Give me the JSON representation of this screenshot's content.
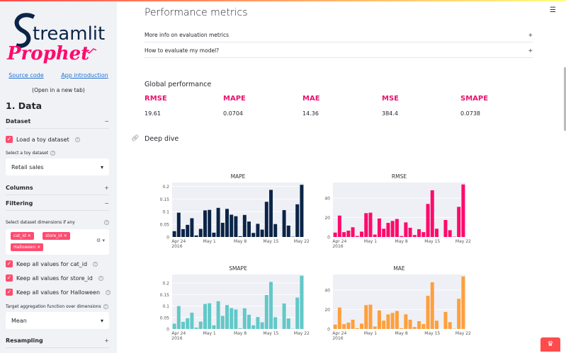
{
  "app": {
    "logo_text": "Streamlit Prophet",
    "menu_icon": "hamburger-icon"
  },
  "sidebar": {
    "links": {
      "source": "Source code",
      "intro": "App introduction",
      "note": "(Open in a new tab)"
    },
    "section_title": "1. Data",
    "dataset": {
      "label": "Dataset",
      "sign": "−",
      "load_toy": "Load a toy dataset",
      "select_label": "Select a toy dataset",
      "select_value": "Retail sales"
    },
    "columns": {
      "label": "Columns",
      "sign": "+"
    },
    "filtering": {
      "label": "Filtering",
      "sign": "−",
      "dims_label": "Select dataset dimensions if any",
      "tags": [
        "cat_id",
        "store_id",
        "Halloween"
      ],
      "keep": [
        "Keep all values for cat_id",
        "Keep all values for store_id",
        "Keep all values for Halloween"
      ],
      "agg_label": "Target aggregation function over dimensions",
      "agg_value": "Mean"
    },
    "resampling": {
      "label": "Resampling",
      "sign": "+"
    }
  },
  "main": {
    "title": "Performance metrics",
    "expanders": [
      {
        "label": "More info on evaluation metrics",
        "sign": "+"
      },
      {
        "label": "How to evaluate my model?",
        "sign": "+"
      }
    ],
    "global_title": "Global performance",
    "metrics": [
      {
        "label": "RMSE",
        "value": "19.61"
      },
      {
        "label": "MAPE",
        "value": "0.0704"
      },
      {
        "label": "MAE",
        "value": "14.36"
      },
      {
        "label": "MSE",
        "value": "384.4"
      },
      {
        "label": "SMAPE",
        "value": "0.0738"
      }
    ],
    "deep_dive": "Deep dive"
  },
  "colors": {
    "accent": "#e8136e",
    "mape": "#0b2447",
    "rmse": "#ff0a6c",
    "smape": "#62c8c8",
    "mae": "#ff9f3d",
    "sidebar_bg": "#f0f2f6"
  },
  "chart_data": [
    {
      "type": "bar",
      "title": "MAPE",
      "x_start": "2016-04-23",
      "x_end": "2016-05-22",
      "xticks": [
        "Apr 24\n2016",
        "May 1",
        "May 8",
        "May 15",
        "May 22"
      ],
      "yticks": [
        "0",
        "0.05",
        "0.1",
        "0.15",
        "0.2"
      ],
      "ylim": [
        0,
        0.215
      ],
      "values": [
        0.023,
        0.096,
        0.031,
        0.048,
        0.074,
        0.006,
        0.032,
        0.105,
        0.107,
        0.017,
        0.115,
        0.056,
        0.111,
        0.088,
        0.082,
        0.003,
        0.087,
        0.061,
        0.016,
        0.052,
        0.029,
        0.139,
        0.186,
        0.051,
        0,
        0.106,
        0.045,
        0.001,
        0.129,
        0.206
      ]
    },
    {
      "type": "bar",
      "title": "RMSE",
      "x_start": "2016-04-23",
      "x_end": "2016-05-22",
      "xticks": [
        "Apr 24\n2016",
        "May 1",
        "May 8",
        "May 15",
        "May 22"
      ],
      "yticks": [
        "0",
        "20",
        "40"
      ],
      "ylim": [
        0,
        56
      ],
      "values": [
        4.5,
        22,
        5,
        6.5,
        10,
        1,
        5.5,
        24.5,
        25,
        2.5,
        19,
        8.5,
        14.5,
        16.5,
        18.5,
        1,
        15,
        9.5,
        2,
        8,
        5,
        34,
        48,
        8.5,
        0,
        17.5,
        7,
        0.3,
        31,
        54
      ]
    },
    {
      "type": "bar",
      "title": "SMAPE",
      "x_start": "2016-04-23",
      "x_end": "2016-05-22",
      "xticks": [
        "Apr 24\n2016",
        "May 1",
        "May 8",
        "May 15",
        "May 22"
      ],
      "yticks": [
        "0",
        "0.05",
        "0.1",
        "0.15",
        "0.2"
      ],
      "ylim": [
        0,
        0.2375
      ],
      "values": [
        0.023,
        0.1,
        0.031,
        0.047,
        0.071,
        0.006,
        0.032,
        0.109,
        0.112,
        0.016,
        0.121,
        0.057,
        0.104,
        0.091,
        0.085,
        0.003,
        0.09,
        0.062,
        0.016,
        0.052,
        0.029,
        0.148,
        0.205,
        0.051,
        0,
        0.111,
        0.046,
        0.001,
        0.137,
        0.232
      ]
    },
    {
      "type": "bar",
      "title": "MAE",
      "x_start": "2016-04-23",
      "x_end": "2016-05-22",
      "xticks": [
        "Apr 24\n2016",
        "May 1",
        "May 8",
        "May 15",
        "May 22"
      ],
      "yticks": [
        "0",
        "20",
        "40"
      ],
      "ylim": [
        0,
        56
      ],
      "values": [
        4.5,
        22,
        5,
        6.5,
        9.5,
        0.8,
        5.5,
        24.5,
        25,
        2.5,
        19,
        8.5,
        15,
        16.5,
        18.5,
        0.8,
        15,
        9.5,
        2,
        8,
        5,
        34,
        48,
        8.5,
        0,
        17.5,
        7,
        0.3,
        31,
        54
      ]
    }
  ]
}
